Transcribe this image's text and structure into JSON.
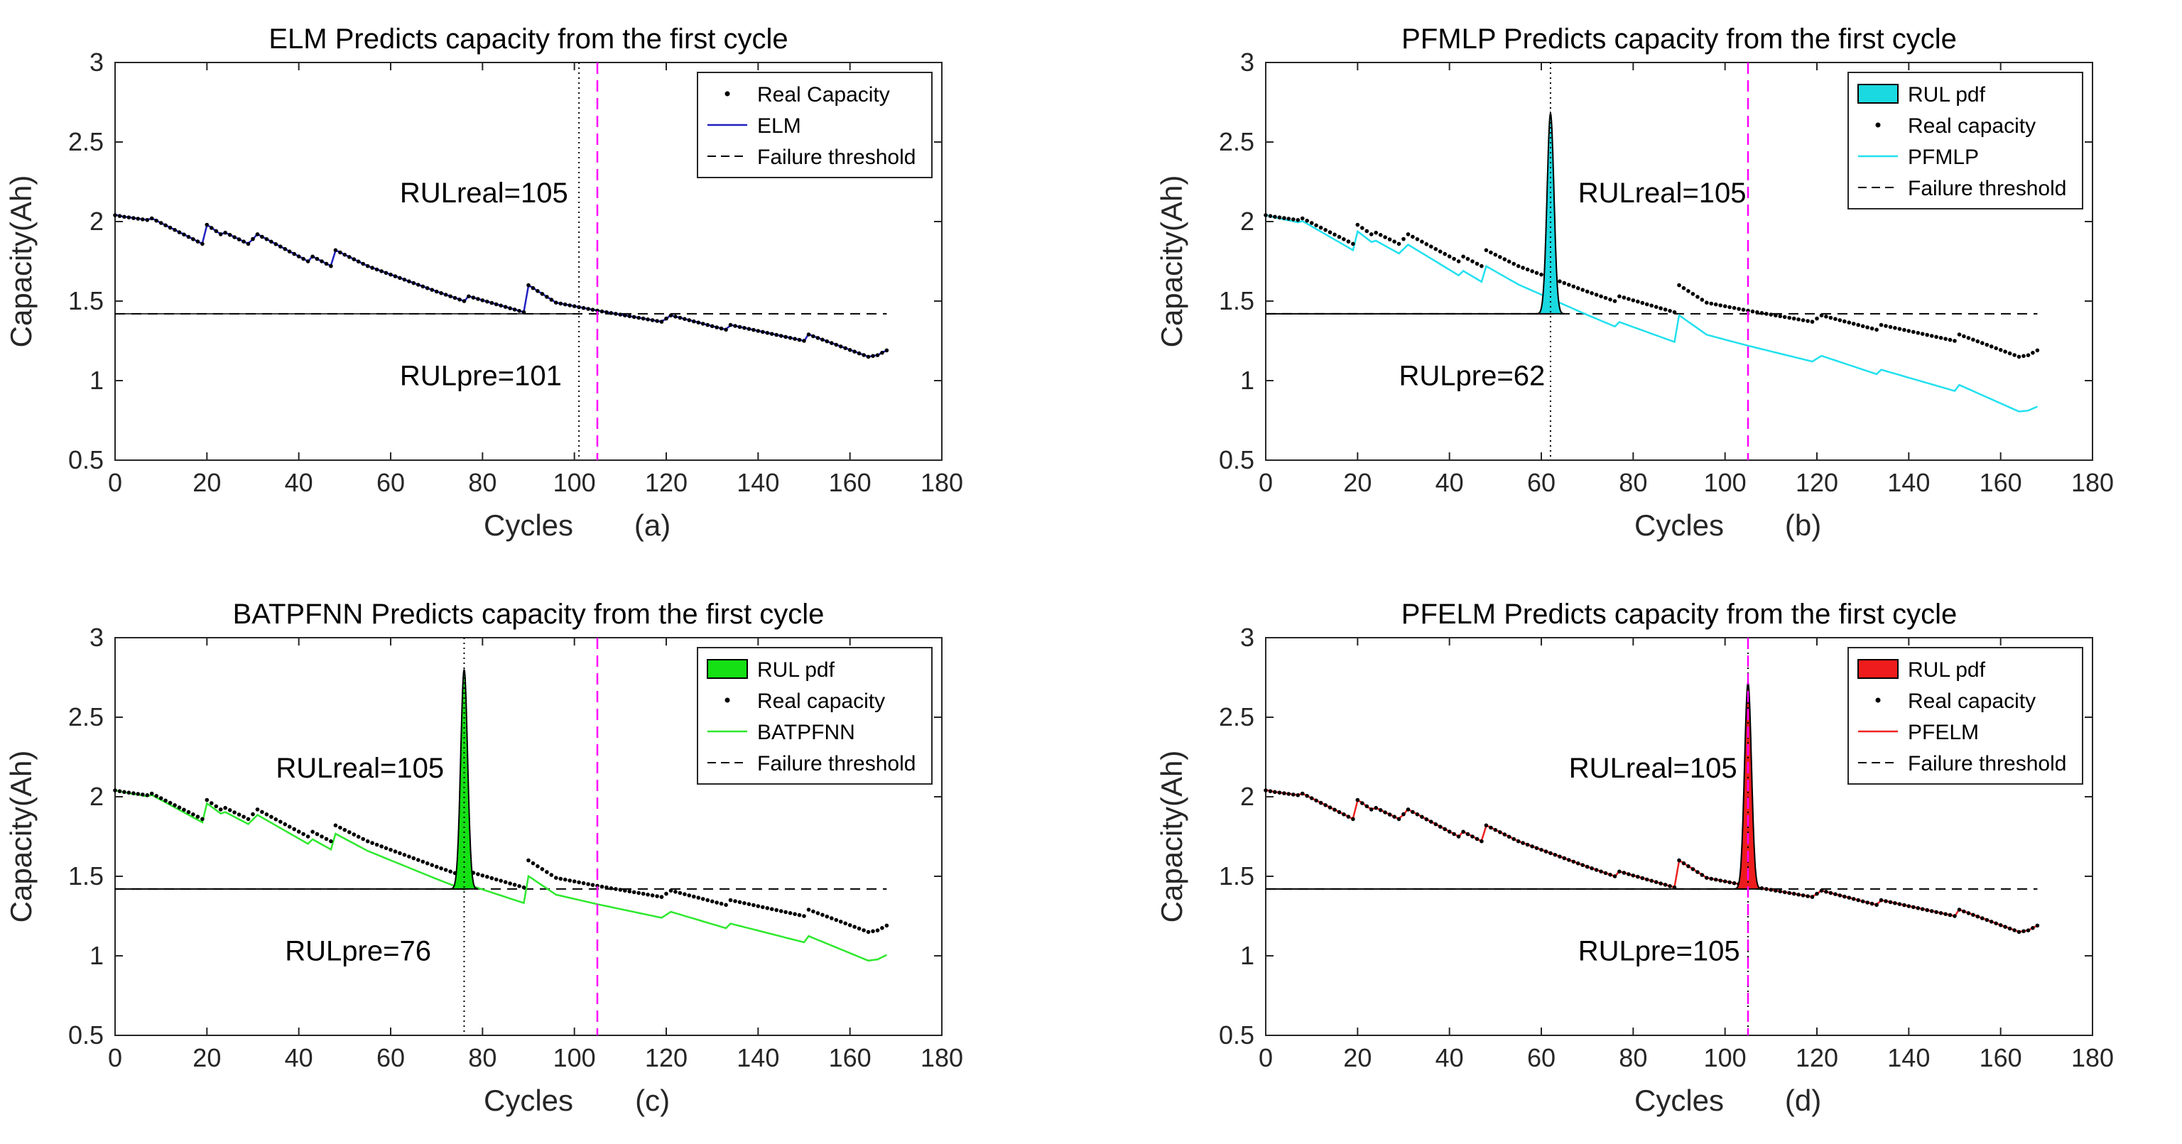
{
  "chart_data": [
    {
      "type": "line",
      "title": "ELM Predicts capacity from the first cycle",
      "xlabel": "Cycles",
      "ylabel": "Capacity(Ah)",
      "panel_label": "(a)",
      "xlim": [
        0,
        180
      ],
      "ylim": [
        0.5,
        3
      ],
      "xticks": [
        "0",
        "20",
        "40",
        "60",
        "80",
        "100",
        "120",
        "140",
        "160",
        "180"
      ],
      "yticks": [
        "0.5",
        "1",
        "1.5",
        "2",
        "2.5",
        "3"
      ],
      "failure_threshold": 1.42,
      "rul_real": 105,
      "rul_pre": 101,
      "annotations": {
        "rulreal": "RULreal=105",
        "rulpre": "RULpre=101"
      },
      "annotation_pos": {
        "rulreal": [
          62,
          2.12
        ],
        "rulpre": [
          62,
          0.97
        ]
      },
      "legend_pos": "top-right",
      "legend": [
        "Real Capacity",
        "ELM",
        "Failure threshold"
      ],
      "pred_offset": 0,
      "pred_scale": 0,
      "pred_color": "#2020c0",
      "pdf": null
    },
    {
      "type": "line",
      "title": "PFMLP Predicts capacity from the first cycle",
      "xlabel": "Cycles",
      "ylabel": "Capacity(Ah)",
      "panel_label": "(b)",
      "xlim": [
        0,
        180
      ],
      "ylim": [
        0.5,
        3
      ],
      "xticks": [
        "0",
        "20",
        "40",
        "60",
        "80",
        "100",
        "120",
        "140",
        "160",
        "180"
      ],
      "yticks": [
        "0.5",
        "1",
        "1.5",
        "2",
        "2.5",
        "3"
      ],
      "failure_threshold": 1.42,
      "rul_real": 105,
      "rul_pre": 62,
      "annotations": {
        "rulreal": "RULreal=105",
        "rulpre": "RULpre=62"
      },
      "annotation_pos": {
        "rulreal": [
          68,
          2.12
        ],
        "rulpre": [
          29,
          0.97
        ]
      },
      "legend_pos": "top-right",
      "legend": [
        "RUL pdf",
        "Real capacity",
        "PFMLP",
        "Failure threshold"
      ],
      "pred_offset": 0,
      "pred_scale": 0.0021,
      "pred_color": "#22e0ee",
      "pdf": {
        "center": 62,
        "halfwidth": 3,
        "peak": 2.68,
        "color": "#1ad9e0"
      }
    },
    {
      "type": "line",
      "title": "BATPFNN Predicts capacity from the first cycle",
      "xlabel": "Cycles",
      "ylabel": "Capacity(Ah)",
      "panel_label": "(c)",
      "xlim": [
        0,
        180
      ],
      "ylim": [
        0.5,
        3
      ],
      "xticks": [
        "0",
        "20",
        "40",
        "60",
        "80",
        "100",
        "120",
        "140",
        "160",
        "180"
      ],
      "yticks": [
        "0.5",
        "1",
        "1.5",
        "2",
        "2.5",
        "3"
      ],
      "failure_threshold": 1.42,
      "rul_real": 105,
      "rul_pre": 76,
      "annotations": {
        "rulreal": "RULreal=105",
        "rulpre": "RULpre=76"
      },
      "annotation_pos": {
        "rulreal": [
          35,
          2.12
        ],
        "rulpre": [
          37,
          0.97
        ]
      },
      "legend_pos": "top-right",
      "legend": [
        "RUL pdf",
        "Real capacity",
        "BATPFNN",
        "Failure threshold"
      ],
      "pred_offset": 0,
      "pred_scale": 0.0011,
      "pred_color": "#2ee82e",
      "pdf": {
        "center": 76,
        "halfwidth": 3,
        "peak": 2.8,
        "color": "#14e014"
      }
    },
    {
      "type": "line",
      "title": "PFELM Predicts capacity from the first cycle",
      "xlabel": "Cycles",
      "ylabel": "Capacity(Ah)",
      "panel_label": "(d)",
      "xlim": [
        0,
        180
      ],
      "ylim": [
        0.5,
        3
      ],
      "xticks": [
        "0",
        "20",
        "40",
        "60",
        "80",
        "100",
        "120",
        "140",
        "160",
        "180"
      ],
      "yticks": [
        "0.5",
        "1",
        "1.5",
        "2",
        "2.5",
        "3"
      ],
      "failure_threshold": 1.42,
      "rul_real": 105,
      "rul_pre": 105,
      "annotations": {
        "rulreal": "RULreal=105",
        "rulpre": "RULpre=105"
      },
      "annotation_pos": {
        "rulreal": [
          66,
          2.12
        ],
        "rulpre": [
          68,
          0.97
        ]
      },
      "legend_pos": "top-right",
      "legend": [
        "RUL pdf",
        "Real capacity",
        "PFELM",
        "Failure threshold"
      ],
      "pred_offset": 0,
      "pred_scale": 0,
      "pred_color": "#ee2222",
      "pdf": {
        "center": 105,
        "halfwidth": 3,
        "peak": 2.72,
        "color": "#ee1c1c"
      }
    }
  ],
  "real_capacity_knots": [
    [
      0,
      2.04
    ],
    [
      2,
      2.03
    ],
    [
      7,
      2.01
    ],
    [
      8,
      2.02
    ],
    [
      19,
      1.86
    ],
    [
      20,
      1.98
    ],
    [
      23,
      1.92
    ],
    [
      24,
      1.93
    ],
    [
      29,
      1.86
    ],
    [
      31,
      1.92
    ],
    [
      42,
      1.75
    ],
    [
      43,
      1.78
    ],
    [
      47,
      1.72
    ],
    [
      48,
      1.82
    ],
    [
      55,
      1.72
    ],
    [
      70,
      1.56
    ],
    [
      76,
      1.5
    ],
    [
      77,
      1.53
    ],
    [
      89,
      1.43
    ],
    [
      90,
      1.6
    ],
    [
      96,
      1.49
    ],
    [
      105,
      1.44
    ],
    [
      119,
      1.37
    ],
    [
      121,
      1.41
    ],
    [
      133,
      1.32
    ],
    [
      134,
      1.35
    ],
    [
      150,
      1.25
    ],
    [
      151,
      1.29
    ],
    [
      164,
      1.15
    ],
    [
      166,
      1.16
    ],
    [
      168,
      1.19
    ]
  ]
}
